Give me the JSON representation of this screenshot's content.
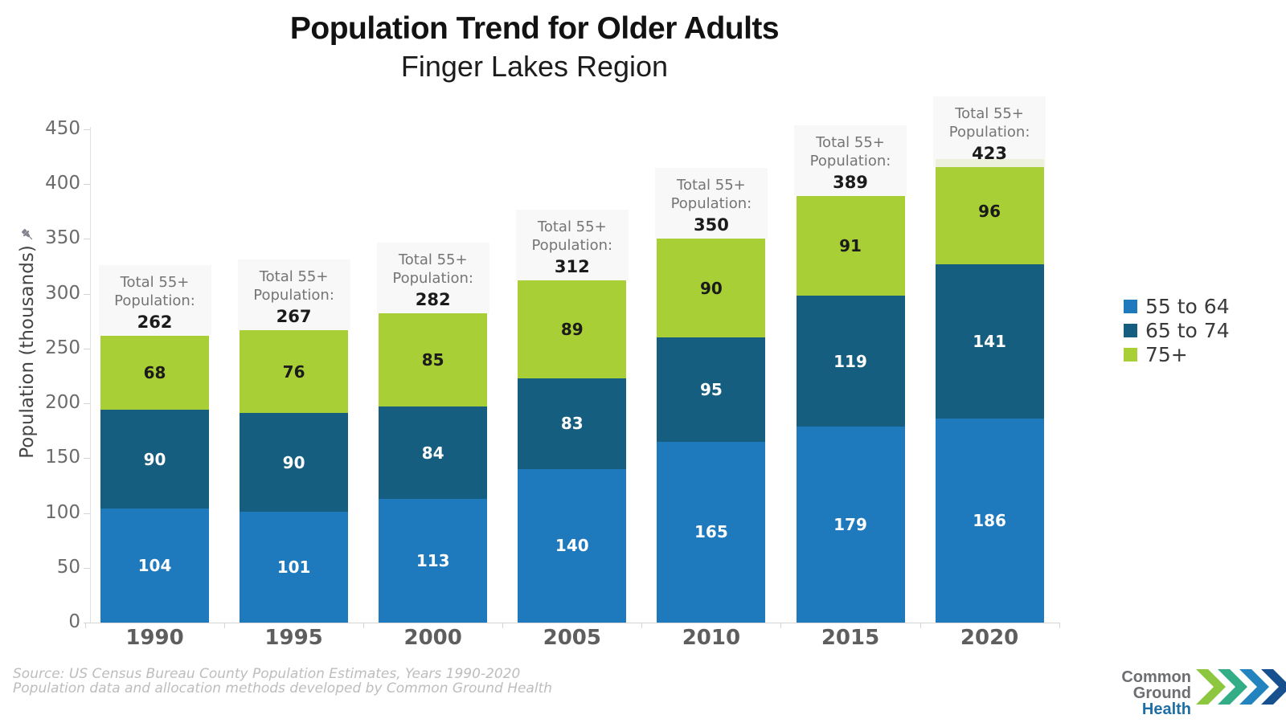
{
  "header": {
    "title": "Population Trend for Older Adults",
    "subtitle": "Finger Lakes Region"
  },
  "chart_data": {
    "type": "bar",
    "stacked": true,
    "title": "Population Trend for Older Adults",
    "subtitle": "Finger Lakes Region",
    "categories": [
      "1990",
      "1995",
      "2000",
      "2005",
      "2010",
      "2015",
      "2020"
    ],
    "series": [
      {
        "name": "55 to 64",
        "color": "#1e79bd",
        "label_color": "#ffffff",
        "values": [
          104,
          101,
          113,
          140,
          165,
          179,
          186
        ]
      },
      {
        "name": "65 to 74",
        "color": "#165e80",
        "label_color": "#ffffff",
        "values": [
          90,
          90,
          84,
          83,
          95,
          119,
          141
        ]
      },
      {
        "name": "75+",
        "color": "#a8cf35",
        "label_color": "#1b1b1b",
        "values": [
          68,
          76,
          85,
          89,
          90,
          91,
          96
        ]
      }
    ],
    "totals": [
      262,
      267,
      282,
      312,
      350,
      389,
      423
    ],
    "annotation": {
      "line1": "Total 55+",
      "line2": "Population:"
    },
    "ylabel": "Population (thousands)",
    "xlabel": "",
    "yticks": [
      0,
      50,
      100,
      150,
      200,
      250,
      300,
      350,
      400,
      450
    ],
    "ylim": [
      0,
      450
    ],
    "grid": false,
    "legend_position": "right"
  },
  "icons": {
    "pin": "pushpin"
  },
  "footer": {
    "source_line1": "Source: US Census Bureau County Population Estimates, Years 1990-2020",
    "source_line2": "Population data and allocation methods developed by Common Ground Health"
  },
  "logo": {
    "line1": "Common Ground",
    "line2": "Health",
    "text_color_line1": "#6d6e71",
    "text_color_line2": "#1e6fa5",
    "chevron_colors": [
      "#8dc63f",
      "#33ad85",
      "#2383bf",
      "#17508f"
    ]
  }
}
